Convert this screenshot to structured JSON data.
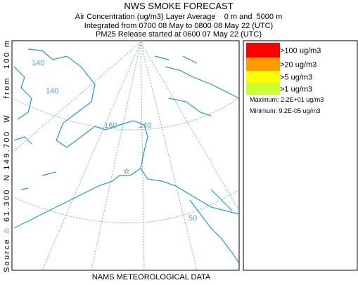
{
  "header": {
    "title": "NWS SMOKE FORECAST",
    "lines": [
      "Air Concentration (ug/m3) Layer Average    0 m and  5000 m",
      "Integrated from 0700 08 May to 0800 08 May 22 (UTC)",
      "PM25 Release started at 0600 07 May 22 (UTC)"
    ]
  },
  "source_label": "Source ☆ 61.300  N 149.700  W    from  100 m",
  "footer": "NAMS METEOROLOGICAL DATA",
  "legend": {
    "entries": [
      {
        "label": ">100 ug/m3",
        "color": "#ff0000"
      },
      {
        "label": ">20 ug/m3",
        "color": "#ff9900"
      },
      {
        "label": ">5 ug/m3",
        "color": "#ffff00"
      },
      {
        "label": ">1 ug/m3",
        "color": "#ccff33"
      }
    ],
    "maximum": "Maximum: 2.2E+01 ug/m3",
    "minimum": "Minimum: 9.2E-05 ug/m3"
  },
  "map": {
    "graticule_labels": [
      "140",
      "140",
      "160",
      "140",
      "50"
    ]
  }
}
